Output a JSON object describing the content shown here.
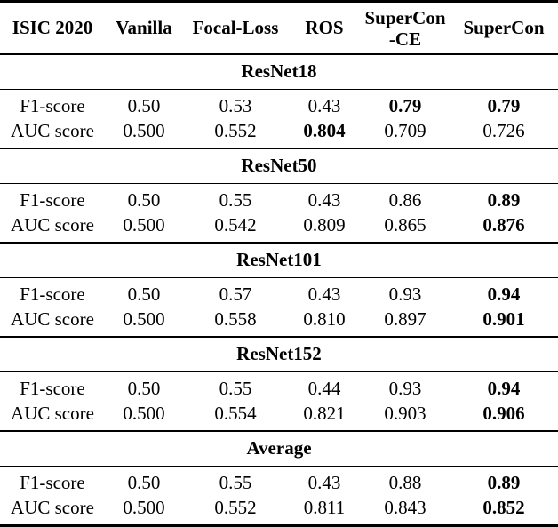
{
  "header": {
    "dataset": "ISIC 2020",
    "vanilla": "Vanilla",
    "focal_loss": "Focal-Loss",
    "ros": "ROS",
    "supercon_ce_line1": "SuperCon",
    "supercon_ce_line2": "-CE",
    "supercon": "SuperCon"
  },
  "sections": [
    {
      "title": "ResNet18",
      "rows": [
        {
          "label": "F1-score",
          "values": [
            "0.50",
            "0.53",
            "0.43",
            "0.79",
            "0.79"
          ],
          "bold": [
            false,
            false,
            false,
            true,
            true
          ]
        },
        {
          "label": "AUC score",
          "values": [
            "0.500",
            "0.552",
            "0.804",
            "0.709",
            "0.726"
          ],
          "bold": [
            false,
            false,
            true,
            false,
            false
          ]
        }
      ]
    },
    {
      "title": "ResNet50",
      "rows": [
        {
          "label": "F1-score",
          "values": [
            "0.50",
            "0.55",
            "0.43",
            "0.86",
            "0.89"
          ],
          "bold": [
            false,
            false,
            false,
            false,
            true
          ]
        },
        {
          "label": "AUC score",
          "values": [
            "0.500",
            "0.542",
            "0.809",
            "0.865",
            "0.876"
          ],
          "bold": [
            false,
            false,
            false,
            false,
            true
          ]
        }
      ]
    },
    {
      "title": "ResNet101",
      "rows": [
        {
          "label": "F1-score",
          "values": [
            "0.50",
            "0.57",
            "0.43",
            "0.93",
            "0.94"
          ],
          "bold": [
            false,
            false,
            false,
            false,
            true
          ]
        },
        {
          "label": "AUC score",
          "values": [
            "0.500",
            "0.558",
            "0.810",
            "0.897",
            "0.901"
          ],
          "bold": [
            false,
            false,
            false,
            false,
            true
          ]
        }
      ]
    },
    {
      "title": "ResNet152",
      "rows": [
        {
          "label": "F1-score",
          "values": [
            "0.50",
            "0.55",
            "0.44",
            "0.93",
            "0.94"
          ],
          "bold": [
            false,
            false,
            false,
            false,
            true
          ]
        },
        {
          "label": "AUC score",
          "values": [
            "0.500",
            "0.554",
            "0.821",
            "0.903",
            "0.906"
          ],
          "bold": [
            false,
            false,
            false,
            false,
            true
          ]
        }
      ]
    },
    {
      "title": "Average",
      "rows": [
        {
          "label": "F1-score",
          "values": [
            "0.50",
            "0.55",
            "0.43",
            "0.88",
            "0.89"
          ],
          "bold": [
            false,
            false,
            false,
            false,
            true
          ]
        },
        {
          "label": "AUC score",
          "values": [
            "0.500",
            "0.552",
            "0.811",
            "0.843",
            "0.852"
          ],
          "bold": [
            false,
            false,
            false,
            false,
            true
          ]
        }
      ]
    }
  ],
  "chart_data": {
    "type": "table",
    "title": "ISIC 2020 results",
    "columns": [
      "ISIC 2020",
      "Vanilla",
      "Focal-Loss",
      "ROS",
      "SuperCon-CE",
      "SuperCon"
    ],
    "groups": [
      {
        "name": "ResNet18",
        "F1-score": [
          0.5,
          0.53,
          0.43,
          0.79,
          0.79
        ],
        "AUC score": [
          0.5,
          0.552,
          0.804,
          0.709,
          0.726
        ]
      },
      {
        "name": "ResNet50",
        "F1-score": [
          0.5,
          0.55,
          0.43,
          0.86,
          0.89
        ],
        "AUC score": [
          0.5,
          0.542,
          0.809,
          0.865,
          0.876
        ]
      },
      {
        "name": "ResNet101",
        "F1-score": [
          0.5,
          0.57,
          0.43,
          0.93,
          0.94
        ],
        "AUC score": [
          0.5,
          0.558,
          0.81,
          0.897,
          0.901
        ]
      },
      {
        "name": "ResNet152",
        "F1-score": [
          0.5,
          0.55,
          0.44,
          0.93,
          0.94
        ],
        "AUC score": [
          0.5,
          0.554,
          0.821,
          0.903,
          0.906
        ]
      },
      {
        "name": "Average",
        "F1-score": [
          0.5,
          0.55,
          0.43,
          0.88,
          0.89
        ],
        "AUC score": [
          0.5,
          0.552,
          0.811,
          0.843,
          0.852
        ]
      }
    ]
  }
}
